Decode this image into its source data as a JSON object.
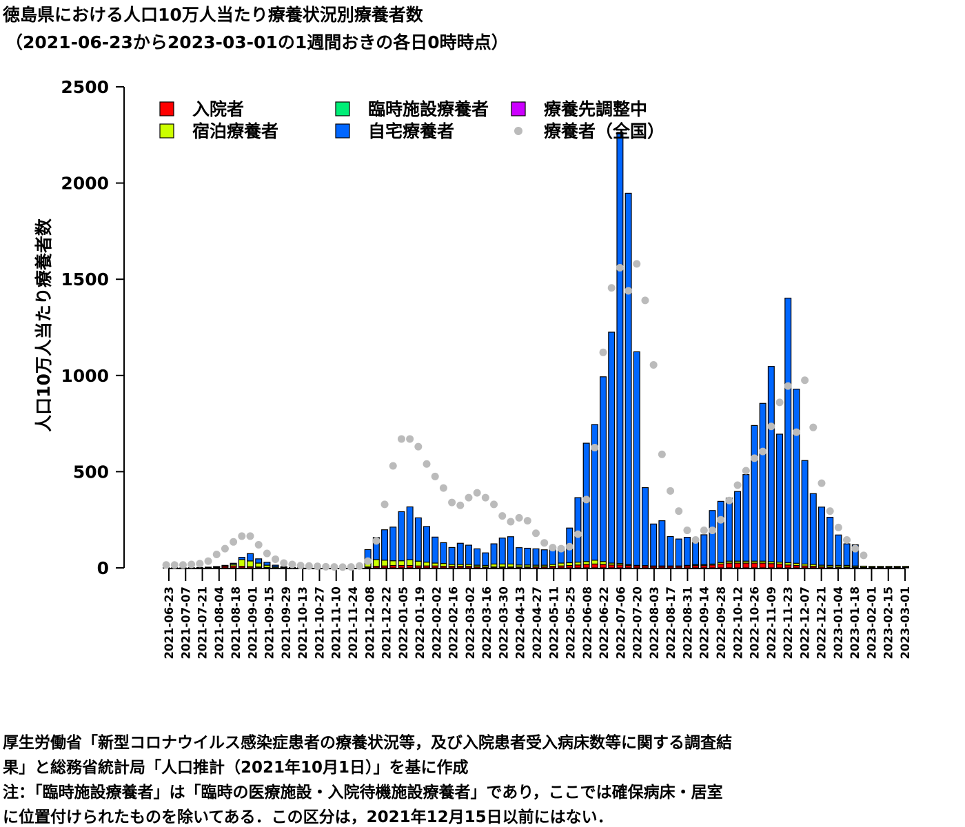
{
  "title": {
    "line1": "徳島県における人口10万人当たり療養状況別療養者数",
    "line2": "（2021-06-23から2023-03-01の1週間おきの各日0時時点）"
  },
  "notes": [
    "厚生労働省「新型コロナウイルス感染症患者の療養状況等，及び入院患者受入病床数等に関する調査結",
    "果」と総務省統計局「人口推計（2021年10月1日）」を基に作成",
    "注：「臨時施設療養者」は「臨時の医療施設・入院待機施設療養者」であり，ここでは確保病床・居室",
    "に位置付けられたものを除いてある．この区分は，2021年12月15日以前にはない．"
  ],
  "chart_data": {
    "type": "bar",
    "stacked": true,
    "ylabel": "人口10万人当たり療養者数",
    "ylim": [
      0,
      2500
    ],
    "yticks": [
      0,
      500,
      1000,
      1500,
      2000,
      2500
    ],
    "x_tick_labels": [
      "2021-06-23",
      "2021-07-07",
      "2021-07-21",
      "2021-08-04",
      "2021-08-18",
      "2021-09-01",
      "2021-09-15",
      "2021-09-29",
      "2021-10-13",
      "2021-10-27",
      "2021-11-10",
      "2021-11-24",
      "2021-12-08",
      "2021-12-22",
      "2022-01-05",
      "2022-01-19",
      "2022-02-02",
      "2022-02-16",
      "2022-03-02",
      "2022-03-16",
      "2022-03-30",
      "2022-04-13",
      "2022-04-27",
      "2022-05-11",
      "2022-05-25",
      "2022-06-08",
      "2022-06-22",
      "2022-07-06",
      "2022-07-20",
      "2022-08-03",
      "2022-08-17",
      "2022-08-31",
      "2022-09-14",
      "2022-09-28",
      "2022-10-12",
      "2022-10-26",
      "2022-11-09",
      "2022-11-23",
      "2022-12-07",
      "2022-12-21",
      "2023-01-04",
      "2023-01-18",
      "2023-02-01",
      "2023-02-15",
      "2023-03-01"
    ],
    "legend": [
      {
        "name": "入院者",
        "color": "#ff0000",
        "marker": "square"
      },
      {
        "name": "宿泊療養者",
        "color": "#ccff00",
        "marker": "square"
      },
      {
        "name": "臨時施設療養者",
        "color": "#00ee77",
        "marker": "square"
      },
      {
        "name": "自宅療養者",
        "color": "#0066ff",
        "marker": "square"
      },
      {
        "name": "療養先調整中",
        "color": "#cc00ff",
        "marker": "square"
      },
      {
        "name": "療養者（全国）",
        "color": "#bbbbbb",
        "marker": "dot"
      }
    ],
    "stack_order": [
      "入院者",
      "宿泊療養者",
      "臨時施設療養者",
      "自宅療養者",
      "療養先調整中"
    ],
    "series": [
      {
        "name": "入院者",
        "color": "#ff0000",
        "values": [
          1,
          1,
          1,
          1,
          2,
          3,
          5,
          8,
          10,
          8,
          6,
          5,
          2,
          1,
          1,
          1,
          1,
          1,
          1,
          1,
          1,
          1,
          2,
          3,
          5,
          8,
          10,
          12,
          12,
          12,
          10,
          10,
          10,
          8,
          8,
          8,
          8,
          6,
          5,
          5,
          5,
          5,
          5,
          5,
          6,
          6,
          8,
          10,
          12,
          15,
          18,
          20,
          18,
          15,
          15,
          12,
          10,
          10,
          8,
          8,
          8,
          8,
          10,
          12,
          12,
          15,
          20,
          25,
          25,
          25,
          25,
          25,
          22,
          20,
          15,
          12,
          10,
          8,
          6,
          5,
          5,
          5,
          4,
          3,
          3,
          3,
          3,
          3,
          3
        ]
      },
      {
        "name": "宿泊療養者",
        "color": "#ccff00",
        "values": [
          0,
          0,
          0,
          0,
          0,
          1,
          1,
          3,
          8,
          35,
          30,
          20,
          12,
          5,
          2,
          1,
          1,
          0,
          0,
          0,
          0,
          0,
          1,
          5,
          20,
          35,
          30,
          25,
          25,
          30,
          25,
          20,
          15,
          15,
          10,
          10,
          10,
          8,
          8,
          15,
          15,
          15,
          10,
          10,
          8,
          8,
          10,
          15,
          15,
          15,
          15,
          20,
          15,
          10,
          8,
          5,
          3,
          2,
          2,
          2,
          2,
          2,
          3,
          5,
          5,
          5,
          8,
          10,
          10,
          10,
          10,
          10,
          10,
          10,
          12,
          12,
          10,
          10,
          8,
          8,
          8,
          8,
          6,
          6,
          5,
          5,
          5,
          5,
          5
        ]
      },
      {
        "name": "臨時施設療養者",
        "color": "#00ee77",
        "values": [
          0,
          0,
          0,
          0,
          0,
          0,
          0,
          0,
          0,
          0,
          0,
          0,
          0,
          0,
          0,
          0,
          0,
          0,
          0,
          0,
          0,
          0,
          0,
          0,
          0,
          0,
          0,
          0,
          0,
          0,
          0,
          0,
          0,
          0,
          0,
          0,
          0,
          0,
          0,
          0,
          0,
          0,
          0,
          0,
          0,
          0,
          0,
          0,
          0,
          0,
          0,
          0,
          0,
          0,
          0,
          0,
          0,
          0,
          0,
          0,
          0,
          0,
          0,
          0,
          0,
          0,
          0,
          0,
          0,
          0,
          0,
          0,
          0,
          0,
          0,
          0,
          0,
          0,
          0,
          0,
          0,
          0,
          0,
          0,
          0,
          0,
          0,
          0,
          0
        ]
      },
      {
        "name": "自宅療養者",
        "color": "#0066ff",
        "values": [
          0,
          0,
          0,
          0,
          0,
          0,
          1,
          2,
          6,
          12,
          38,
          22,
          15,
          8,
          3,
          0,
          0,
          0,
          0,
          0,
          0,
          0,
          1,
          6,
          70,
          115,
          158,
          175,
          255,
          275,
          225,
          185,
          135,
          108,
          88,
          110,
          100,
          85,
          65,
          105,
          135,
          142,
          90,
          87,
          85,
          80,
          78,
          83,
          180,
          335,
          615,
          705,
          960,
          1200,
          2240,
          1930,
          1110,
          405,
          218,
          235,
          153,
          140,
          146,
          115,
          155,
          278,
          318,
          328,
          362,
          450,
          705,
          820,
          1015,
          665,
          1375,
          905,
          538,
          368,
          302,
          250,
          158,
          112,
          110,
          0,
          0,
          0,
          0,
          0,
          0
        ]
      },
      {
        "name": "療養先調整中",
        "color": "#cc00ff",
        "values": [
          0,
          0,
          0,
          0,
          0,
          0,
          0,
          0,
          0,
          0,
          0,
          0,
          0,
          0,
          0,
          0,
          0,
          0,
          0,
          0,
          0,
          0,
          0,
          0,
          0,
          0,
          0,
          0,
          0,
          0,
          0,
          0,
          0,
          0,
          0,
          0,
          0,
          0,
          0,
          0,
          0,
          0,
          0,
          0,
          0,
          0,
          0,
          0,
          0,
          0,
          0,
          0,
          0,
          0,
          0,
          0,
          0,
          0,
          0,
          0,
          0,
          0,
          0,
          0,
          0,
          0,
          0,
          0,
          0,
          0,
          0,
          0,
          0,
          0,
          0,
          0,
          0,
          0,
          0,
          0,
          0,
          0,
          0,
          0,
          0,
          0,
          0,
          0,
          0
        ]
      },
      {
        "name": "療養者（全国）",
        "color": "#bbbbbb",
        "type": "scatter",
        "values": [
          15,
          15,
          15,
          18,
          22,
          35,
          70,
          100,
          135,
          165,
          165,
          120,
          75,
          45,
          25,
          18,
          12,
          10,
          8,
          6,
          5,
          4,
          5,
          10,
          35,
          140,
          330,
          530,
          670,
          670,
          630,
          540,
          475,
          415,
          340,
          325,
          365,
          390,
          365,
          330,
          270,
          240,
          260,
          245,
          180,
          130,
          105,
          100,
          110,
          175,
          355,
          625,
          1120,
          1455,
          1560,
          1440,
          1580,
          1390,
          1055,
          590,
          400,
          295,
          195,
          145,
          195,
          195,
          250,
          350,
          430,
          505,
          570,
          605,
          735,
          860,
          945,
          705,
          975,
          730,
          440,
          295,
          210,
          145,
          100,
          65,
          0,
          0,
          0,
          0,
          0
        ]
      }
    ]
  }
}
